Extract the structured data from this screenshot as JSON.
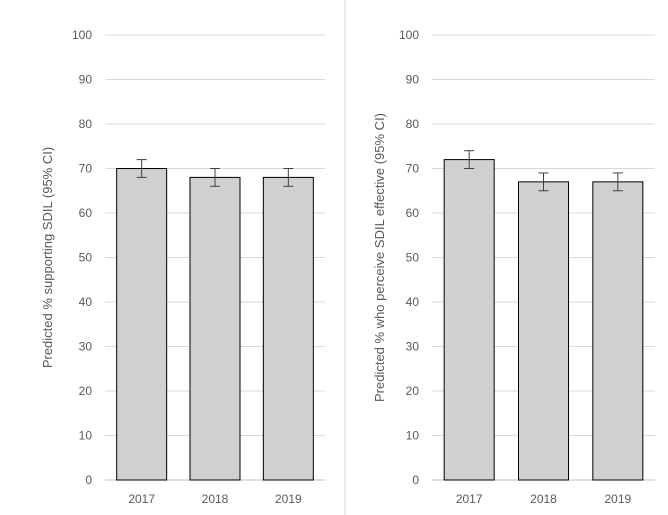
{
  "chart_data": [
    {
      "type": "bar",
      "ylabel": "Predicted % supporting SDIL (95% CI)",
      "categories": [
        "2017",
        "2018",
        "2019"
      ],
      "values": [
        70,
        68,
        68
      ],
      "ci_lower": [
        68,
        66,
        66
      ],
      "ci_upper": [
        72,
        70,
        70
      ],
      "ylim": [
        0,
        100
      ],
      "yticks": [
        "0",
        "10",
        "20",
        "30",
        "40",
        "50",
        "60",
        "70",
        "80",
        "90",
        "100"
      ],
      "grid": true,
      "bar_color": "#d0d0d0"
    },
    {
      "type": "bar",
      "ylabel": "Predicted % who perceive SDIL effective (95% CI)",
      "categories": [
        "2017",
        "2018",
        "2019"
      ],
      "values": [
        72,
        67,
        67
      ],
      "ci_lower": [
        70,
        65,
        65
      ],
      "ci_upper": [
        74,
        69,
        69
      ],
      "ylim": [
        0,
        100
      ],
      "yticks": [
        "0",
        "10",
        "20",
        "30",
        "40",
        "50",
        "60",
        "70",
        "80",
        "90",
        "100"
      ],
      "grid": true,
      "bar_color": "#d0d0d0"
    }
  ]
}
